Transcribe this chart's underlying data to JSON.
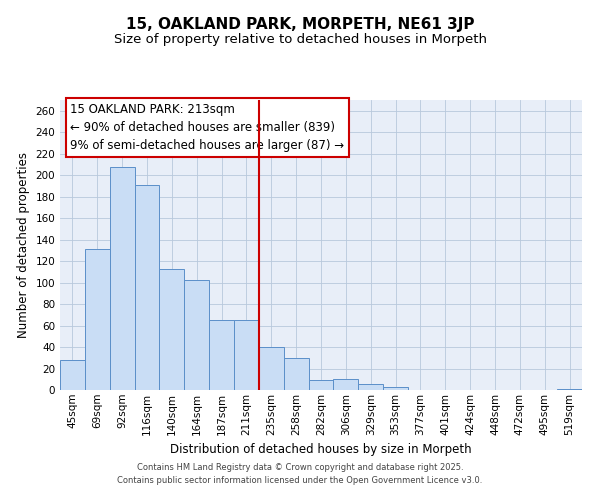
{
  "title": "15, OAKLAND PARK, MORPETH, NE61 3JP",
  "subtitle": "Size of property relative to detached houses in Morpeth",
  "xlabel": "Distribution of detached houses by size in Morpeth",
  "ylabel": "Number of detached properties",
  "categories": [
    "45sqm",
    "69sqm",
    "92sqm",
    "116sqm",
    "140sqm",
    "164sqm",
    "187sqm",
    "211sqm",
    "235sqm",
    "258sqm",
    "282sqm",
    "306sqm",
    "329sqm",
    "353sqm",
    "377sqm",
    "401sqm",
    "424sqm",
    "448sqm",
    "472sqm",
    "495sqm",
    "519sqm"
  ],
  "values": [
    28,
    131,
    208,
    191,
    113,
    102,
    65,
    65,
    40,
    30,
    9,
    10,
    6,
    3,
    0,
    0,
    0,
    0,
    0,
    0,
    1
  ],
  "bar_color": "#c9ddf5",
  "bar_edge_color": "#5b8fc9",
  "vline_x": 7.5,
  "vline_color": "#cc0000",
  "annotation_title": "15 OAKLAND PARK: 213sqm",
  "annotation_line1": "← 90% of detached houses are smaller (839)",
  "annotation_line2": "9% of semi-detached houses are larger (87) →",
  "annotation_box_color": "#ffffff",
  "annotation_box_edge": "#cc0000",
  "ylim": [
    0,
    270
  ],
  "yticks": [
    0,
    20,
    40,
    60,
    80,
    100,
    120,
    140,
    160,
    180,
    200,
    220,
    240,
    260
  ],
  "bg_color": "#e8eef8",
  "footer1": "Contains HM Land Registry data © Crown copyright and database right 2025.",
  "footer2": "Contains public sector information licensed under the Open Government Licence v3.0.",
  "title_fontsize": 11,
  "subtitle_fontsize": 9.5,
  "label_fontsize": 8.5,
  "tick_fontsize": 7.5,
  "annotation_fontsize": 8.5,
  "footer_fontsize": 6
}
